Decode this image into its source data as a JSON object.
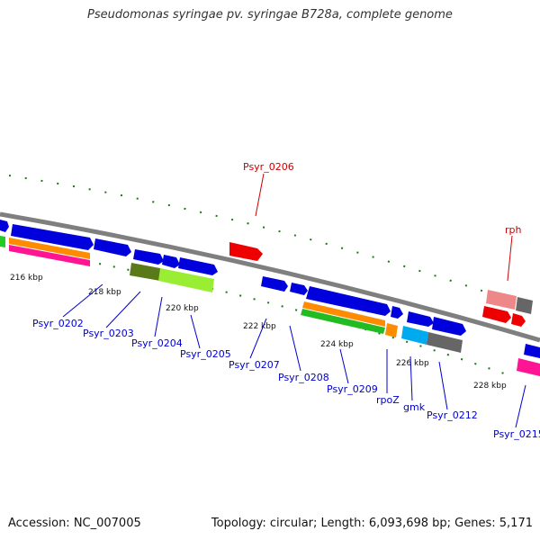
{
  "title": "Pseudomonas syringae pv. syringae B728a, complete genome",
  "footer": {
    "accession": "Accession: NC_007005",
    "topology": "Topology: circular; Length: 6,093,698 bp; Genes: 5,171"
  },
  "ticks": [
    "216 kbp",
    "218 kbp",
    "220 kbp",
    "222 kbp",
    "224 kbp",
    "226 kbp",
    "228 kbp"
  ],
  "genes": [
    {
      "label": "Psyr_0202",
      "color": "#0000cc"
    },
    {
      "label": "Psyr_0203",
      "color": "#0000cc"
    },
    {
      "label": "Psyr_0204",
      "color": "#0000cc"
    },
    {
      "label": "Psyr_0205",
      "color": "#0000cc"
    },
    {
      "label": "Psyr_0206",
      "color": "#cc0000"
    },
    {
      "label": "Psyr_0207",
      "color": "#0000cc"
    },
    {
      "label": "Psyr_0208",
      "color": "#0000cc"
    },
    {
      "label": "Psyr_0209",
      "color": "#0000cc"
    },
    {
      "label": "rpoZ",
      "color": "#0000cc"
    },
    {
      "label": "gmk",
      "color": "#0000cc"
    },
    {
      "label": "Psyr_0212",
      "color": "#0000cc"
    },
    {
      "label": "rph",
      "color": "#cc0000"
    },
    {
      "label": "Psyr_0215",
      "color": "#0000cc"
    }
  ]
}
